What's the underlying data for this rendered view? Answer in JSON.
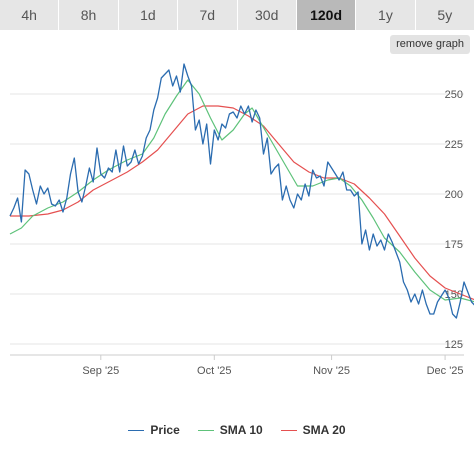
{
  "tabs": [
    {
      "label": "4h",
      "active": false
    },
    {
      "label": "8h",
      "active": false
    },
    {
      "label": "1d",
      "active": false
    },
    {
      "label": "7d",
      "active": false
    },
    {
      "label": "30d",
      "active": false
    },
    {
      "label": "120d",
      "active": true
    },
    {
      "label": "1y",
      "active": false
    },
    {
      "label": "5y",
      "active": false
    }
  ],
  "remove_graph_label": "remove graph",
  "chart_data": {
    "type": "line",
    "x_range": [
      "2025-08-08",
      "2025-12-06"
    ],
    "ylim": [
      120,
      265
    ],
    "yticks": [
      125,
      150,
      175,
      200,
      225,
      250
    ],
    "xticks": [
      {
        "date": "2025-09-01",
        "label": "Sep '25"
      },
      {
        "date": "2025-10-01",
        "label": "Oct '25"
      },
      {
        "date": "2025-11-01",
        "label": "Nov '25"
      },
      {
        "date": "2025-12-01",
        "label": "Dec '25"
      }
    ],
    "grid": true,
    "legend_position": "bottom",
    "series": [
      {
        "name": "Price",
        "color": "#2b6cb0",
        "points": [
          [
            "2025-08-08",
            189
          ],
          [
            "2025-08-09",
            193
          ],
          [
            "2025-08-10",
            198
          ],
          [
            "2025-08-11",
            186
          ],
          [
            "2025-08-12",
            212
          ],
          [
            "2025-08-13",
            210
          ],
          [
            "2025-08-14",
            202
          ],
          [
            "2025-08-15",
            195
          ],
          [
            "2025-08-16",
            204
          ],
          [
            "2025-08-17",
            200
          ],
          [
            "2025-08-18",
            203
          ],
          [
            "2025-08-19",
            195
          ],
          [
            "2025-08-20",
            194
          ],
          [
            "2025-08-21",
            197
          ],
          [
            "2025-08-22",
            191
          ],
          [
            "2025-08-23",
            198
          ],
          [
            "2025-08-24",
            210
          ],
          [
            "2025-08-25",
            218
          ],
          [
            "2025-08-26",
            201
          ],
          [
            "2025-08-27",
            196
          ],
          [
            "2025-08-28",
            204
          ],
          [
            "2025-08-29",
            213
          ],
          [
            "2025-08-30",
            206
          ],
          [
            "2025-08-31",
            223
          ],
          [
            "2025-09-01",
            210
          ],
          [
            "2025-09-02",
            208
          ],
          [
            "2025-09-03",
            213
          ],
          [
            "2025-09-04",
            211
          ],
          [
            "2025-09-05",
            222
          ],
          [
            "2025-09-06",
            211
          ],
          [
            "2025-09-07",
            224
          ],
          [
            "2025-09-08",
            214
          ],
          [
            "2025-09-09",
            216
          ],
          [
            "2025-09-10",
            222
          ],
          [
            "2025-09-11",
            215
          ],
          [
            "2025-09-12",
            219
          ],
          [
            "2025-09-13",
            228
          ],
          [
            "2025-09-14",
            232
          ],
          [
            "2025-09-15",
            242
          ],
          [
            "2025-09-16",
            248
          ],
          [
            "2025-09-17",
            258
          ],
          [
            "2025-09-18",
            260
          ],
          [
            "2025-09-19",
            262
          ],
          [
            "2025-09-20",
            254
          ],
          [
            "2025-09-21",
            259
          ],
          [
            "2025-09-22",
            251
          ],
          [
            "2025-09-23",
            265
          ],
          [
            "2025-09-24",
            259
          ],
          [
            "2025-09-25",
            254
          ],
          [
            "2025-09-26",
            232
          ],
          [
            "2025-09-27",
            237
          ],
          [
            "2025-09-28",
            225
          ],
          [
            "2025-09-29",
            235
          ],
          [
            "2025-09-30",
            215
          ],
          [
            "2025-10-01",
            232
          ],
          [
            "2025-10-02",
            227
          ],
          [
            "2025-10-03",
            235
          ],
          [
            "2025-10-04",
            233
          ],
          [
            "2025-10-05",
            240
          ],
          [
            "2025-10-06",
            241
          ],
          [
            "2025-10-07",
            238
          ],
          [
            "2025-10-08",
            244
          ],
          [
            "2025-10-09",
            240
          ],
          [
            "2025-10-10",
            244
          ],
          [
            "2025-10-11",
            236
          ],
          [
            "2025-10-12",
            242
          ],
          [
            "2025-10-13",
            238
          ],
          [
            "2025-10-14",
            220
          ],
          [
            "2025-10-15",
            228
          ],
          [
            "2025-10-16",
            210
          ],
          [
            "2025-10-17",
            213
          ],
          [
            "2025-10-18",
            215
          ],
          [
            "2025-10-19",
            197
          ],
          [
            "2025-10-20",
            204
          ],
          [
            "2025-10-21",
            197
          ],
          [
            "2025-10-22",
            193
          ],
          [
            "2025-10-23",
            200
          ],
          [
            "2025-10-24",
            197
          ],
          [
            "2025-10-25",
            205
          ],
          [
            "2025-10-26",
            199
          ],
          [
            "2025-10-27",
            212
          ],
          [
            "2025-10-28",
            208
          ],
          [
            "2025-10-29",
            209
          ],
          [
            "2025-10-30",
            204
          ],
          [
            "2025-10-31",
            216
          ],
          [
            "2025-11-01",
            213
          ],
          [
            "2025-11-02",
            210
          ],
          [
            "2025-11-03",
            207
          ],
          [
            "2025-11-04",
            211
          ],
          [
            "2025-11-05",
            202
          ],
          [
            "2025-11-06",
            202
          ],
          [
            "2025-11-07",
            199
          ],
          [
            "2025-11-08",
            201
          ],
          [
            "2025-11-09",
            175
          ],
          [
            "2025-11-10",
            182
          ],
          [
            "2025-11-11",
            172
          ],
          [
            "2025-11-12",
            180
          ],
          [
            "2025-11-13",
            174
          ],
          [
            "2025-11-14",
            177
          ],
          [
            "2025-11-15",
            172
          ],
          [
            "2025-11-16",
            180
          ],
          [
            "2025-11-17",
            176
          ],
          [
            "2025-11-18",
            171
          ],
          [
            "2025-11-19",
            166
          ],
          [
            "2025-11-20",
            156
          ],
          [
            "2025-11-21",
            152
          ],
          [
            "2025-11-22",
            146
          ],
          [
            "2025-11-23",
            150
          ],
          [
            "2025-11-24",
            145
          ],
          [
            "2025-11-25",
            152
          ],
          [
            "2025-11-26",
            145
          ],
          [
            "2025-11-27",
            140
          ],
          [
            "2025-11-28",
            140
          ],
          [
            "2025-11-29",
            146
          ],
          [
            "2025-11-30",
            149
          ],
          [
            "2025-12-01",
            152
          ],
          [
            "2025-12-02",
            148
          ],
          [
            "2025-12-03",
            140
          ],
          [
            "2025-12-04",
            138
          ],
          [
            "2025-12-05",
            146
          ],
          [
            "2025-12-06",
            156
          ],
          [
            "2025-12-07",
            151
          ],
          [
            "2025-12-08",
            146
          ],
          [
            "2025-12-09",
            144
          ]
        ]
      },
      {
        "name": "SMA 10",
        "color": "#5ec27a",
        "points": [
          [
            "2025-08-08",
            180
          ],
          [
            "2025-08-11",
            183
          ],
          [
            "2025-08-14",
            189
          ],
          [
            "2025-08-18",
            193
          ],
          [
            "2025-08-22",
            196
          ],
          [
            "2025-08-26",
            201
          ],
          [
            "2025-08-30",
            207
          ],
          [
            "2025-09-03",
            212
          ],
          [
            "2025-09-08",
            217
          ],
          [
            "2025-09-12",
            220
          ],
          [
            "2025-09-15",
            228
          ],
          [
            "2025-09-18",
            240
          ],
          [
            "2025-09-21",
            249
          ],
          [
            "2025-09-24",
            257
          ],
          [
            "2025-09-27",
            250
          ],
          [
            "2025-09-30",
            238
          ],
          [
            "2025-10-03",
            227
          ],
          [
            "2025-10-06",
            232
          ],
          [
            "2025-10-09",
            240
          ],
          [
            "2025-10-11",
            243
          ],
          [
            "2025-10-15",
            230
          ],
          [
            "2025-10-19",
            217
          ],
          [
            "2025-10-23",
            204
          ],
          [
            "2025-10-27",
            204
          ],
          [
            "2025-10-31",
            207
          ],
          [
            "2025-11-03",
            208
          ],
          [
            "2025-11-06",
            204
          ],
          [
            "2025-11-09",
            197
          ],
          [
            "2025-11-12",
            188
          ],
          [
            "2025-11-15",
            178
          ],
          [
            "2025-11-19",
            171
          ],
          [
            "2025-11-23",
            161
          ],
          [
            "2025-11-27",
            152
          ],
          [
            "2025-12-01",
            147
          ],
          [
            "2025-12-05",
            148
          ],
          [
            "2025-12-09",
            146
          ]
        ]
      },
      {
        "name": "SMA 20",
        "color": "#e55050",
        "points": [
          [
            "2025-08-08",
            189
          ],
          [
            "2025-08-13",
            189
          ],
          [
            "2025-08-18",
            190
          ],
          [
            "2025-08-22",
            192
          ],
          [
            "2025-08-26",
            196
          ],
          [
            "2025-08-30",
            202
          ],
          [
            "2025-09-04",
            207
          ],
          [
            "2025-09-08",
            211
          ],
          [
            "2025-09-12",
            216
          ],
          [
            "2025-09-16",
            222
          ],
          [
            "2025-09-20",
            231
          ],
          [
            "2025-09-24",
            240
          ],
          [
            "2025-09-28",
            244
          ],
          [
            "2025-10-02",
            244
          ],
          [
            "2025-10-06",
            243
          ],
          [
            "2025-10-10",
            239
          ],
          [
            "2025-10-14",
            234
          ],
          [
            "2025-10-18",
            225
          ],
          [
            "2025-10-22",
            216
          ],
          [
            "2025-10-26",
            211
          ],
          [
            "2025-10-30",
            208
          ],
          [
            "2025-11-03",
            208
          ],
          [
            "2025-11-07",
            205
          ],
          [
            "2025-11-11",
            198
          ],
          [
            "2025-11-15",
            190
          ],
          [
            "2025-11-19",
            179
          ],
          [
            "2025-11-23",
            168
          ],
          [
            "2025-11-27",
            159
          ],
          [
            "2025-12-01",
            153
          ],
          [
            "2025-12-05",
            150
          ],
          [
            "2025-12-09",
            147
          ]
        ]
      }
    ]
  }
}
